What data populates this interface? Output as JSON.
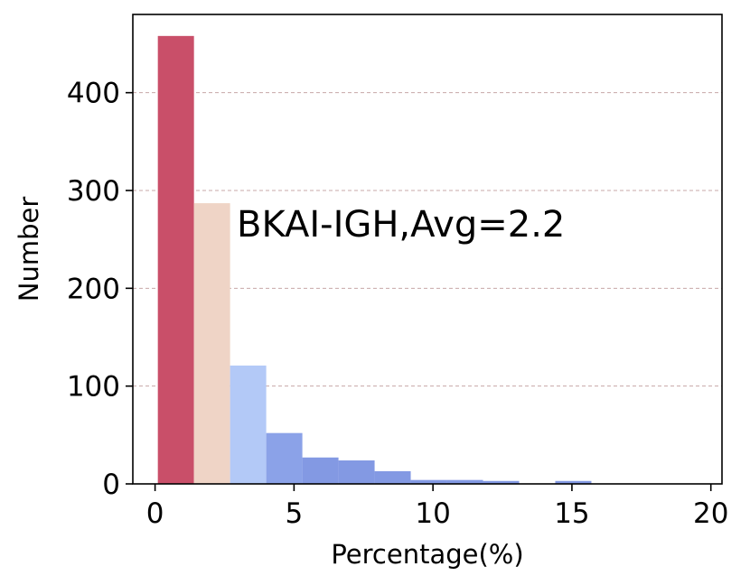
{
  "chart_data": {
    "type": "bar",
    "title": "",
    "xlabel": "Percentage(%)",
    "ylabel": "Number",
    "xlim": [
      -0.8,
      20.4
    ],
    "ylim": [
      0,
      480
    ],
    "xticks": [
      0,
      5,
      10,
      15,
      20
    ],
    "yticks": [
      0,
      100,
      200,
      300,
      400
    ],
    "grid": "horizontal dashed",
    "annotation": "BKAI-IGH,Avg=2.2",
    "bins": [
      {
        "x0": 0.1,
        "x1": 1.4,
        "value": 458,
        "color": "#c94f69"
      },
      {
        "x0": 1.4,
        "x1": 2.7,
        "value": 287,
        "color": "#efd4c6"
      },
      {
        "x0": 2.7,
        "x1": 4.0,
        "value": 121,
        "color": "#b3c9f7"
      },
      {
        "x0": 4.0,
        "x1": 5.3,
        "value": 52,
        "color": "#8ba2e8"
      },
      {
        "x0": 5.3,
        "x1": 6.6,
        "value": 27,
        "color": "#8399e3"
      },
      {
        "x0": 6.6,
        "x1": 7.9,
        "value": 24,
        "color": "#8399e3"
      },
      {
        "x0": 7.9,
        "x1": 9.2,
        "value": 13,
        "color": "#8399e3"
      },
      {
        "x0": 9.2,
        "x1": 10.5,
        "value": 4,
        "color": "#8399e3"
      },
      {
        "x0": 10.5,
        "x1": 11.8,
        "value": 4,
        "color": "#8399e3"
      },
      {
        "x0": 11.8,
        "x1": 13.1,
        "value": 3,
        "color": "#8399e3"
      },
      {
        "x0": 14.4,
        "x1": 15.7,
        "value": 3,
        "color": "#8399e3"
      }
    ]
  }
}
